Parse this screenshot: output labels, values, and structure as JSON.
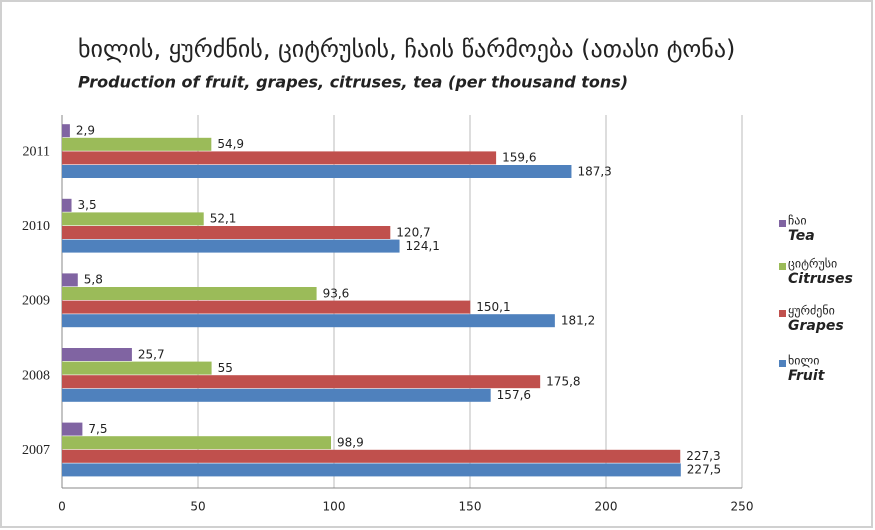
{
  "chart_data": {
    "type": "barh",
    "title": "ხილის, ყურძნის, ციტრუსის, ჩაის წარმოება (ათასი ტონა)",
    "subtitle": "Production of fruit, grapes, citruses, tea (per thousand tons)",
    "categories": [
      "2007",
      "2008",
      "2009",
      "2010",
      "2011"
    ],
    "series": [
      {
        "name": "Fruit",
        "name_ka": "ხილი",
        "color": "#4f81bd",
        "values": [
          227.5,
          157.6,
          181.2,
          124.1,
          187.3
        ],
        "value_labels": [
          "227,5",
          "157,6",
          "181,2",
          "124,1",
          "187,3"
        ]
      },
      {
        "name": "Grapes",
        "name_ka": "ყურძენი",
        "color": "#c0504d",
        "values": [
          227.3,
          175.8,
          150.1,
          120.7,
          159.6
        ],
        "value_labels": [
          "227,3",
          "175,8",
          "150,1",
          "120,7",
          "159,6"
        ]
      },
      {
        "name": "Citruses",
        "name_ka": "ციტრუსი",
        "color": "#9bbb59",
        "values": [
          98.9,
          55,
          93.6,
          52.1,
          54.9
        ],
        "value_labels": [
          "98,9",
          "55",
          "93,6",
          "52,1",
          "54,9"
        ]
      },
      {
        "name": "Tea",
        "name_ka": "ჩაი",
        "color": "#8064a2",
        "values": [
          7.5,
          25.7,
          5.8,
          3.5,
          2.9
        ],
        "value_labels": [
          "7,5",
          "25,7",
          "5,8",
          "3,5",
          "2,9"
        ]
      }
    ],
    "xlim": [
      0,
      250
    ],
    "xticks": [
      0,
      50,
      100,
      150,
      200,
      250
    ],
    "grid": true,
    "legend": "right"
  }
}
